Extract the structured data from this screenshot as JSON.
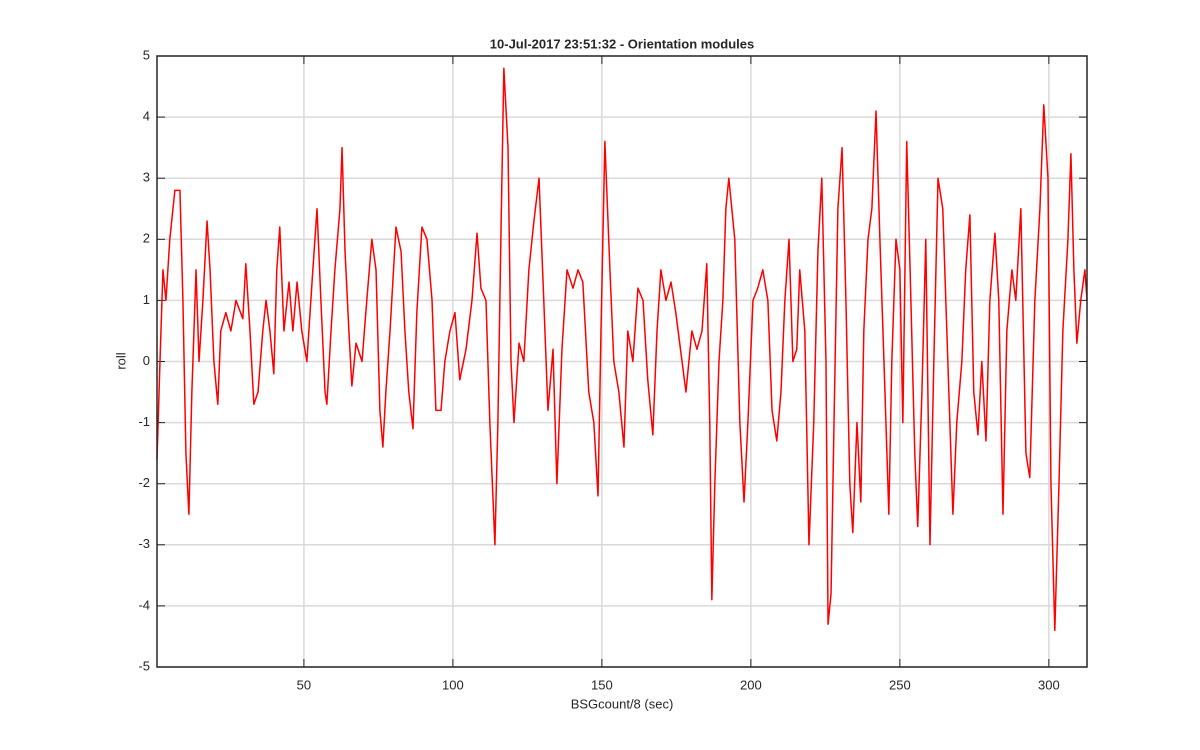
{
  "chart_data": {
    "type": "line",
    "title": "10-Jul-2017 23:51:32 - Orientation modules",
    "xlabel": "BSGcount/8 (sec)",
    "ylabel": "roll",
    "xlim": [
      0.7,
      312.8
    ],
    "ylim": [
      -5,
      5
    ],
    "xticks": [
      50,
      100,
      150,
      200,
      250,
      300
    ],
    "yticks": [
      -5,
      -4,
      -3,
      -2,
      -1,
      0,
      1,
      2,
      3,
      4,
      5
    ],
    "grid": true,
    "series": [
      {
        "color": "#ff0000",
        "x": [
          0.7,
          1.7,
          2.7,
          3.7,
          5.0,
          6.7,
          8.4,
          9.4,
          10.4,
          11.4,
          12.4,
          13.8,
          14.8,
          16.1,
          17.5,
          18.5,
          19.8,
          21.1,
          22.1,
          23.8,
          25.5,
          27.2,
          29.5,
          30.5,
          31.9,
          33.2,
          34.6,
          36.2,
          37.3,
          38.6,
          39.9,
          40.9,
          41.9,
          43.3,
          45.0,
          46.3,
          47.7,
          49.3,
          51.0,
          53.0,
          54.4,
          55.7,
          57.1,
          57.7,
          59.1,
          60.4,
          62.1,
          62.8,
          63.8,
          65.1,
          66.1,
          67.5,
          69.5,
          71.1,
          72.8,
          74.2,
          75.5,
          76.5,
          77.5,
          78.9,
          80.9,
          82.6,
          83.9,
          85.2,
          86.6,
          87.9,
          89.6,
          91.3,
          93.0,
          94.3,
          96.0,
          97.3,
          99.0,
          100.7,
          102.3,
          104.4,
          106.4,
          108.1,
          109.4,
          111.1,
          112.4,
          114.1,
          115.1,
          116.1,
          117.1,
          118.5,
          119.5,
          120.5,
          122.2,
          123.8,
          125.5,
          127.2,
          128.9,
          130.5,
          131.9,
          133.6,
          134.9,
          136.6,
          138.3,
          140.3,
          142.0,
          143.6,
          145.6,
          147.3,
          148.7,
          149.7,
          151.0,
          152.7,
          154.0,
          155.7,
          157.4,
          158.7,
          160.4,
          162.1,
          163.8,
          165.4,
          167.1,
          168.5,
          169.8,
          171.5,
          173.2,
          174.8,
          176.9,
          178.2,
          180.2,
          181.9,
          183.6,
          185.2,
          186.2,
          186.9,
          187.9,
          189.3,
          190.6,
          191.6,
          192.6,
          194.6,
          196.3,
          197.7,
          199.0,
          200.7,
          202.3,
          204.0,
          205.7,
          207.1,
          208.7,
          210.1,
          211.4,
          212.8,
          214.1,
          215.4,
          216.4,
          218.1,
          219.5,
          221.1,
          222.5,
          223.8,
          225.2,
          225.9,
          226.9,
          227.9,
          229.2,
          230.6,
          231.9,
          233.2,
          234.2,
          235.6,
          236.9,
          237.9,
          239.3,
          240.6,
          242.0,
          243.3,
          245.0,
          246.3,
          247.3,
          248.7,
          250.0,
          251.0,
          252.3,
          253.7,
          255.0,
          256.0,
          257.4,
          258.7,
          260.1,
          261.4,
          262.8,
          264.4,
          266.1,
          267.8,
          269.1,
          270.8,
          272.1,
          273.5,
          274.8,
          276.2,
          277.5,
          278.9,
          280.2,
          281.9,
          283.2,
          284.6,
          285.9,
          287.6,
          288.9,
          290.6,
          292.3,
          293.6,
          295.3,
          297.0,
          298.3,
          299.7,
          300.7,
          302.0,
          303.4,
          304.7,
          306.4,
          307.4,
          308.4,
          309.4,
          310.7,
          312.1,
          312.8
        ],
        "values": [
          -1.6,
          0,
          1.5,
          1.0,
          2.0,
          2.8,
          2.8,
          1.0,
          -1.5,
          -2.5,
          -0.5,
          1.5,
          0,
          1.0,
          2.3,
          1.5,
          0,
          -0.7,
          0.5,
          0.8,
          0.5,
          1.0,
          0.7,
          1.6,
          0.5,
          -0.7,
          -0.5,
          0.5,
          1.0,
          0.5,
          -0.2,
          1.5,
          2.2,
          0.5,
          1.3,
          0.5,
          1.3,
          0.5,
          0,
          1.5,
          2.5,
          1.0,
          -0.5,
          -0.7,
          0.5,
          1.5,
          2.5,
          3.5,
          1.8,
          0.5,
          -0.4,
          0.3,
          0.0,
          1.0,
          2.0,
          1.5,
          -0.8,
          -1.4,
          -0.5,
          0.5,
          2.2,
          1.8,
          0.5,
          -0.5,
          -1.1,
          0.8,
          2.2,
          2.0,
          1.0,
          -0.8,
          -0.8,
          0,
          0.5,
          0.8,
          -0.3,
          0.2,
          1.0,
          2.1,
          1.2,
          1.0,
          -1.0,
          -3.0,
          -1.0,
          2.0,
          4.8,
          3.5,
          0,
          -1.0,
          0.3,
          0,
          1.5,
          2.3,
          3.0,
          1.0,
          -0.8,
          0.2,
          -2.0,
          0.2,
          1.5,
          1.2,
          1.5,
          1.3,
          -0.5,
          -1.0,
          -2.2,
          0.5,
          3.6,
          1.5,
          0,
          -0.5,
          -1.4,
          0.5,
          0,
          1.2,
          1.0,
          -0.3,
          -1.2,
          0.5,
          1.5,
          1.0,
          1.3,
          0.8,
          0.0,
          -0.5,
          0.5,
          0.2,
          0.5,
          1.6,
          -1.0,
          -3.9,
          -2.0,
          0,
          1.0,
          2.5,
          3.0,
          2.0,
          -1.0,
          -2.3,
          -1.0,
          1.0,
          1.2,
          1.5,
          1.0,
          -0.8,
          -1.3,
          -0.5,
          1.0,
          2.0,
          0,
          0.2,
          1.5,
          0.5,
          -3.0,
          -1.0,
          1.8,
          3.0,
          0,
          -4.3,
          -3.8,
          -1.0,
          2.5,
          3.5,
          1.0,
          -2.0,
          -2.8,
          -1.0,
          -2.3,
          0.5,
          2.0,
          2.5,
          4.1,
          2.0,
          -0.5,
          -2.5,
          0,
          2.0,
          1.5,
          -1.0,
          3.6,
          1.0,
          -1.5,
          -2.7,
          -0.5,
          2.0,
          -3.0,
          0,
          3.0,
          2.5,
          0,
          -2.5,
          -1.0,
          0,
          1.5,
          2.4,
          -0.5,
          -1.2,
          0,
          -1.3,
          1.0,
          2.1,
          1.0,
          -2.5,
          0.5,
          1.5,
          1.0,
          2.5,
          -1.5,
          -1.9,
          1.0,
          2.5,
          4.2,
          3.0,
          -2.0,
          -4.4,
          -2.0,
          0.5,
          2.0,
          3.4,
          1.5,
          0.3,
          1.0,
          1.5,
          1.0
        ]
      }
    ]
  }
}
